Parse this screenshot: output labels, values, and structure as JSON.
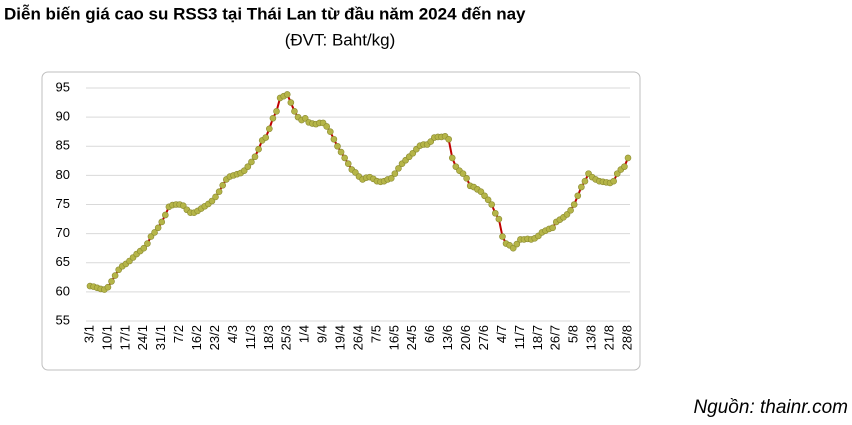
{
  "chart_data": {
    "type": "line",
    "title": "Diễn biến giá cao su RSS3 tại Thái Lan từ đầu năm 2024 đến nay",
    "subtitle": "(ĐVT: Baht/kg)",
    "source": "Nguồn: thainr.com",
    "categories": [
      "3/1",
      null,
      null,
      null,
      null,
      "10/1",
      null,
      null,
      null,
      null,
      "17/1",
      null,
      null,
      null,
      null,
      "24/1",
      null,
      null,
      null,
      null,
      "31/1",
      null,
      null,
      null,
      null,
      "7/2",
      null,
      null,
      null,
      null,
      "16/2",
      null,
      null,
      null,
      null,
      "23/2",
      null,
      null,
      null,
      null,
      "4/3",
      null,
      null,
      null,
      null,
      "11/3",
      null,
      null,
      null,
      null,
      "18/3",
      null,
      null,
      null,
      null,
      "25/3",
      null,
      null,
      null,
      null,
      "1/4",
      null,
      null,
      null,
      null,
      "9/4",
      null,
      null,
      null,
      null,
      "19/4",
      null,
      null,
      null,
      null,
      "26/4",
      null,
      null,
      null,
      null,
      "7/5",
      null,
      null,
      null,
      null,
      "16/5",
      null,
      null,
      null,
      null,
      "24/5",
      null,
      null,
      null,
      null,
      "6/6",
      null,
      null,
      null,
      null,
      "13/6",
      null,
      null,
      null,
      null,
      "20/6",
      null,
      null,
      null,
      null,
      "27/6",
      null,
      null,
      null,
      null,
      "4/7",
      null,
      null,
      null,
      null,
      "11/7",
      null,
      null,
      null,
      null,
      "18/7",
      null,
      null,
      null,
      null,
      "26/7",
      null,
      null,
      null,
      null,
      "5/8",
      null,
      null,
      null,
      null,
      "13/8",
      null,
      null,
      null,
      null,
      "21/8",
      null,
      null,
      null,
      null,
      "28/8"
    ],
    "series": [
      {
        "name": "RSS3",
        "color": "#c00000",
        "marker_color": "#b5b548",
        "values": [
          61,
          60.9,
          60.7,
          60.5,
          60.4,
          60.8,
          61.8,
          62.8,
          63.8,
          64.4,
          64.8,
          65.3,
          65.9,
          66.5,
          67,
          67.5,
          68.3,
          69.5,
          70.2,
          71,
          72,
          73.2,
          74.6,
          74.9,
          75,
          75,
          74.8,
          74.1,
          73.6,
          73.6,
          73.9,
          74.3,
          74.7,
          75.1,
          75.6,
          76.3,
          77.2,
          78.3,
          79.3,
          79.8,
          80,
          80.2,
          80.4,
          80.8,
          81.5,
          82.3,
          83.2,
          84.5,
          86,
          86.5,
          88,
          89.8,
          91,
          93.3,
          93.6,
          93.9,
          92.5,
          91,
          90,
          89.5,
          89.8,
          89.1,
          88.9,
          88.8,
          89,
          89,
          88.4,
          87.5,
          86.2,
          85,
          84,
          83,
          82,
          81,
          80.5,
          79.8,
          79.3,
          79.6,
          79.7,
          79.4,
          79,
          78.9,
          79,
          79.3,
          79.5,
          80.3,
          81.2,
          82,
          82.6,
          83.2,
          83.8,
          84.5,
          85.1,
          85.3,
          85.3,
          85.8,
          86.5,
          86.6,
          86.6,
          86.7,
          86.2,
          83,
          81.5,
          80.8,
          80.3,
          79.5,
          78.2,
          78,
          77.6,
          77.2,
          76.5,
          75.8,
          75,
          73.5,
          72.5,
          69.5,
          68.3,
          68,
          67.5,
          68.2,
          69,
          69,
          69.1,
          69,
          69.2,
          69.6,
          70.2,
          70.5,
          70.8,
          71,
          72,
          72.4,
          72.8,
          73.3,
          74,
          75,
          76.5,
          78,
          79,
          80.3,
          79.7,
          79.3,
          79,
          78.9,
          78.8,
          78.7,
          79,
          80.3,
          81,
          81.5,
          83
        ]
      }
    ],
    "ylim": [
      55,
      95
    ],
    "yticks": [
      55,
      60,
      65,
      70,
      75,
      80,
      85,
      90,
      95
    ],
    "grid": true
  }
}
